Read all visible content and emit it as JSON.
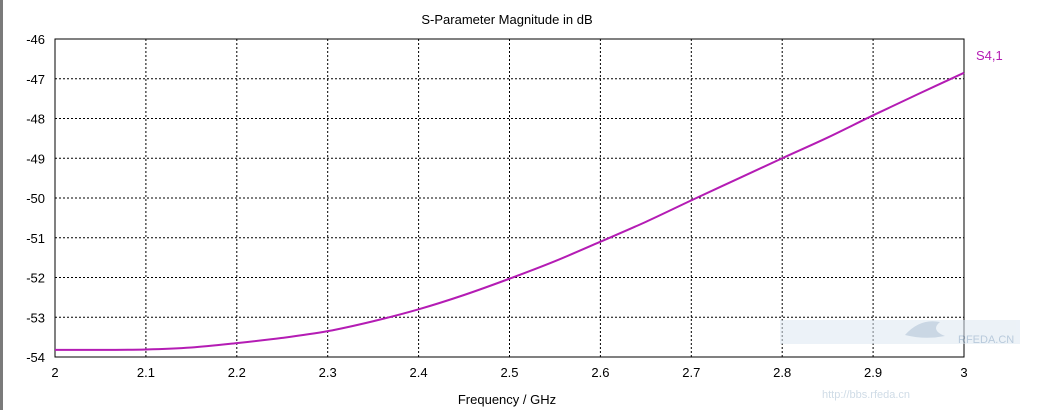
{
  "chart_data": {
    "type": "line",
    "title": "S-Parameter Magnitude in dB",
    "xlabel": "Frequency / GHz",
    "ylabel": "",
    "xlim": [
      2,
      3
    ],
    "ylim": [
      -54,
      -46
    ],
    "xticks": [
      "2",
      "2.1",
      "2.2",
      "2.3",
      "2.4",
      "2.5",
      "2.6",
      "2.7",
      "2.8",
      "2.9",
      "3"
    ],
    "yticks": [
      "-46",
      "-47",
      "-48",
      "-49",
      "-50",
      "-51",
      "-52",
      "-53",
      "-54"
    ],
    "grid": true,
    "legend_position": "right",
    "series": [
      {
        "name": "S4,1",
        "color": "#b41cb4",
        "x": [
          2.0,
          2.05,
          2.1,
          2.15,
          2.2,
          2.25,
          2.3,
          2.35,
          2.4,
          2.45,
          2.5,
          2.55,
          2.6,
          2.65,
          2.7,
          2.75,
          2.8,
          2.85,
          2.9,
          2.95,
          3.0
        ],
        "y": [
          -53.82,
          -53.82,
          -53.81,
          -53.76,
          -53.65,
          -53.52,
          -53.35,
          -53.1,
          -52.8,
          -52.44,
          -52.03,
          -51.59,
          -51.1,
          -50.6,
          -50.06,
          -49.53,
          -49.0,
          -48.48,
          -47.92,
          -47.38,
          -46.85
        ]
      }
    ]
  },
  "watermark": {
    "site_text": "RFEDA.CN",
    "url_text": "http://bbs.rfeda.cn"
  }
}
